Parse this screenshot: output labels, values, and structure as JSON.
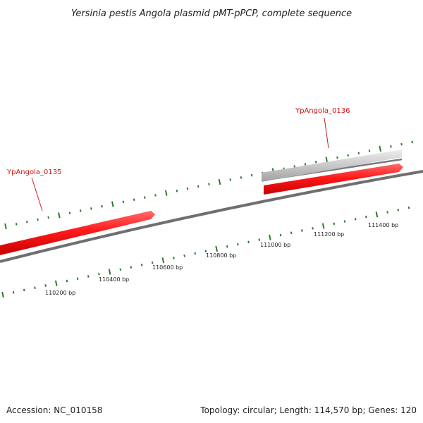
{
  "map": {
    "title": "Yersinia pestis Angola plasmid pMT-pPCP, complete sequence",
    "accession_text": "Accession: NC_010158",
    "summary_text": "Topology: circular; Length: 114,570 bp; Genes: 120"
  },
  "genes": [
    {
      "label": "YpAngola_0135"
    },
    {
      "label": "YpAngola_0136"
    }
  ],
  "scale": {
    "labels": [
      "110200 bp",
      "110400 bp",
      "110600 bp",
      "110800 bp",
      "111000 bp",
      "111200 bp",
      "111400 bp"
    ]
  },
  "colors": {
    "backbone": "#808080",
    "gene_forward": "#ff1a1a",
    "gene_other": "#c8c8c8",
    "tick": "#2f7a2f",
    "label": "#dd1111"
  }
}
